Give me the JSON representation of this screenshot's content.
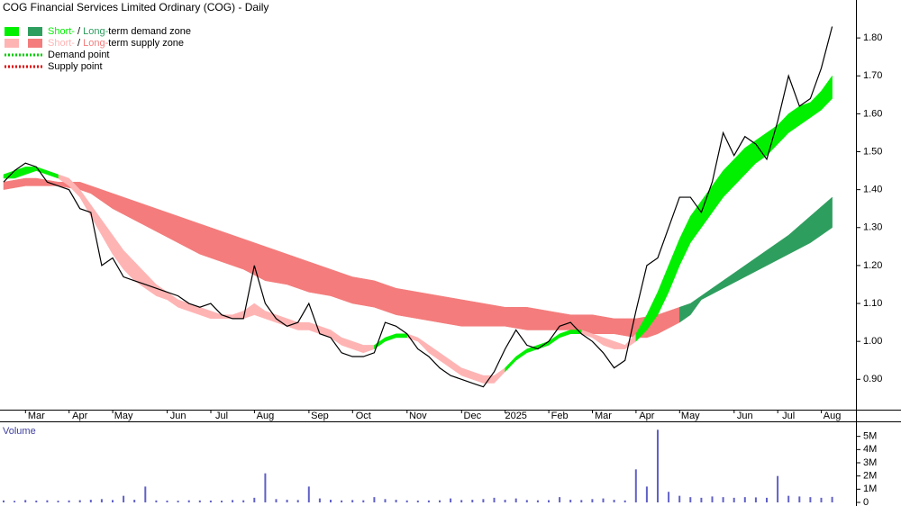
{
  "chart_data": [
    {
      "type": "line",
      "title": "COG Financial Services Limited Ordinary (COG) - Daily",
      "categories": [
        null,
        null,
        null,
        "Mar",
        null,
        null,
        null,
        "Apr",
        null,
        null,
        null,
        "May",
        null,
        null,
        null,
        null,
        "Jun",
        null,
        null,
        null,
        "Jul",
        null,
        null,
        null,
        "Aug",
        null,
        null,
        null,
        null,
        "Sep",
        null,
        null,
        null,
        "Oct",
        null,
        null,
        null,
        null,
        "Nov",
        null,
        null,
        null,
        null,
        "Dec",
        null,
        null,
        null,
        "2025",
        null,
        null,
        null,
        "Feb",
        null,
        null,
        null,
        "Mar",
        null,
        null,
        null,
        "Apr",
        null,
        null,
        null,
        "May",
        null,
        null,
        null,
        null,
        "Jun",
        null,
        null,
        null,
        "Jul",
        null,
        null,
        null,
        "Aug"
      ],
      "ylim": [
        0.82,
        1.9
      ],
      "yticks": [
        {
          "value": 0.9,
          "label": "0.90"
        },
        {
          "value": 1.0,
          "label": "1.00"
        },
        {
          "value": 1.1,
          "label": "1.10"
        },
        {
          "value": 1.2,
          "label": "1.20"
        },
        {
          "value": 1.3,
          "label": "1.30"
        },
        {
          "value": 1.4,
          "label": "1.40"
        },
        {
          "value": 1.5,
          "label": "1.50"
        },
        {
          "value": 1.6,
          "label": "1.60"
        },
        {
          "value": 1.7,
          "label": "1.70"
        },
        {
          "value": 1.8,
          "label": "1.80"
        }
      ],
      "legend": [
        {
          "parts": [
            "Short-",
            " / ",
            "Long-",
            "term demand zone"
          ],
          "swatch_colors": [
            "#00f000",
            "#2e9e5e"
          ]
        },
        {
          "parts": [
            "Short-",
            " / ",
            "Long-",
            "term supply zone"
          ],
          "swatch_colors": [
            "#ffb4b4",
            "#f47c7c"
          ]
        },
        {
          "label": "Demand point",
          "color": "#00cc00"
        },
        {
          "label": "Supply point",
          "color": "#dd0000"
        }
      ],
      "series": [
        {
          "color": "#f47c7c",
          "upper": [
            1.42,
            1.425,
            1.43,
            1.43,
            1.425,
            1.42,
            1.42,
            1.42,
            1.41,
            1.4,
            1.39,
            1.38,
            1.37,
            1.36,
            1.35,
            1.34,
            1.33,
            1.32,
            1.31,
            1.3,
            1.29,
            1.28,
            1.27,
            1.26,
            1.25,
            1.24,
            1.23,
            1.22,
            1.21,
            1.2,
            1.19,
            1.18,
            1.17,
            1.165,
            1.16,
            1.15,
            1.14,
            1.135,
            1.13,
            1.125,
            1.12,
            1.115,
            1.11,
            1.105,
            1.1,
            1.095,
            1.09,
            1.09,
            1.09,
            1.085,
            1.08,
            1.075,
            1.07,
            1.07,
            1.07,
            1.065,
            1.06,
            1.06,
            1.06,
            1.065,
            1.07,
            1.08,
            1.09,
            null,
            null,
            null,
            null,
            null,
            null,
            null,
            null,
            null,
            null,
            null,
            null,
            null,
            null
          ],
          "lower": [
            1.4,
            1.405,
            1.41,
            1.41,
            1.41,
            1.41,
            1.405,
            1.4,
            1.39,
            1.37,
            1.35,
            1.335,
            1.32,
            1.305,
            1.29,
            1.275,
            1.26,
            1.245,
            1.23,
            1.22,
            1.21,
            1.2,
            1.19,
            1.175,
            1.16,
            1.155,
            1.15,
            1.14,
            1.13,
            1.125,
            1.12,
            1.11,
            1.1,
            1.095,
            1.09,
            1.08,
            1.07,
            1.065,
            1.06,
            1.055,
            1.05,
            1.045,
            1.04,
            1.04,
            1.04,
            1.04,
            1.04,
            1.035,
            1.03,
            1.03,
            1.03,
            1.03,
            1.03,
            1.025,
            1.02,
            1.02,
            1.02,
            1.015,
            1.01,
            1.01,
            1.02,
            1.035,
            1.05,
            null,
            null,
            null,
            null,
            null,
            null,
            null,
            null,
            null,
            null,
            null,
            null,
            null,
            null
          ]
        },
        {
          "color": "#2e9e5e",
          "upper": [
            null,
            null,
            null,
            null,
            null,
            null,
            null,
            null,
            null,
            null,
            null,
            null,
            null,
            null,
            null,
            null,
            null,
            null,
            null,
            null,
            null,
            null,
            null,
            null,
            null,
            null,
            null,
            null,
            null,
            null,
            null,
            null,
            null,
            null,
            null,
            null,
            null,
            null,
            null,
            null,
            null,
            null,
            null,
            null,
            null,
            null,
            null,
            null,
            null,
            null,
            null,
            null,
            null,
            null,
            null,
            null,
            null,
            null,
            null,
            null,
            null,
            null,
            1.09,
            1.1,
            1.12,
            1.14,
            1.16,
            1.18,
            1.2,
            1.22,
            1.24,
            1.26,
            1.28,
            1.305,
            1.33,
            1.355,
            1.38
          ],
          "lower": [
            null,
            null,
            null,
            null,
            null,
            null,
            null,
            null,
            null,
            null,
            null,
            null,
            null,
            null,
            null,
            null,
            null,
            null,
            null,
            null,
            null,
            null,
            null,
            null,
            null,
            null,
            null,
            null,
            null,
            null,
            null,
            null,
            null,
            null,
            null,
            null,
            null,
            null,
            null,
            null,
            null,
            null,
            null,
            null,
            null,
            null,
            null,
            null,
            null,
            null,
            null,
            null,
            null,
            null,
            null,
            null,
            null,
            null,
            null,
            null,
            null,
            null,
            1.05,
            1.07,
            1.11,
            1.125,
            1.14,
            1.155,
            1.17,
            1.185,
            1.2,
            1.215,
            1.23,
            1.245,
            1.26,
            1.28,
            1.3
          ]
        },
        {
          "color": "#ffb4b4",
          "upper": [
            null,
            null,
            null,
            null,
            null,
            1.44,
            1.43,
            1.4,
            1.36,
            1.32,
            1.28,
            1.24,
            1.21,
            1.18,
            1.15,
            1.13,
            1.11,
            1.1,
            1.09,
            1.08,
            1.07,
            1.07,
            1.08,
            1.1,
            1.08,
            1.07,
            1.06,
            1.05,
            1.05,
            1.04,
            1.03,
            1.01,
            1.0,
            0.99,
            0.99,
            null,
            null,
            1.02,
            1.01,
            0.99,
            0.97,
            0.95,
            0.93,
            0.92,
            0.91,
            0.91,
            0.93,
            null,
            null,
            null,
            null,
            null,
            null,
            1.03,
            1.02,
            1.01,
            1.0,
            0.99,
            1.02,
            null,
            null,
            null,
            null,
            null,
            null,
            null,
            null,
            null,
            null,
            null,
            null,
            null,
            null,
            null,
            null,
            null,
            null
          ],
          "lower": [
            null,
            null,
            null,
            null,
            null,
            1.43,
            1.41,
            1.38,
            1.33,
            1.28,
            1.23,
            1.19,
            1.16,
            1.14,
            1.12,
            1.11,
            1.09,
            1.08,
            1.07,
            1.06,
            1.06,
            1.06,
            1.06,
            1.07,
            1.06,
            1.05,
            1.04,
            1.03,
            1.03,
            1.02,
            1.01,
            0.99,
            0.98,
            0.97,
            0.98,
            null,
            null,
            1.01,
            1.0,
            0.97,
            0.95,
            0.93,
            0.91,
            0.9,
            0.89,
            0.89,
            0.92,
            null,
            null,
            null,
            null,
            null,
            null,
            1.02,
            1.01,
            0.99,
            0.98,
            0.98,
            1.0,
            null,
            null,
            null,
            null,
            null,
            null,
            null,
            null,
            null,
            null,
            null,
            null,
            null,
            null,
            null,
            null,
            null,
            null
          ]
        },
        {
          "color": "#00f000",
          "upper": [
            1.44,
            1.45,
            1.46,
            1.46,
            1.45,
            1.44,
            null,
            null,
            null,
            null,
            null,
            null,
            null,
            null,
            null,
            null,
            null,
            null,
            null,
            null,
            null,
            null,
            null,
            null,
            null,
            null,
            null,
            null,
            null,
            null,
            null,
            null,
            null,
            null,
            0.99,
            1.01,
            1.02,
            1.02,
            null,
            null,
            null,
            null,
            null,
            null,
            null,
            null,
            0.93,
            0.96,
            0.98,
            0.99,
            1.0,
            1.02,
            1.03,
            1.03,
            null,
            null,
            null,
            null,
            1.02,
            1.07,
            1.13,
            1.2,
            1.27,
            1.33,
            1.37,
            1.41,
            1.45,
            1.48,
            1.51,
            1.53,
            1.55,
            1.57,
            1.6,
            1.62,
            1.63,
            1.66,
            1.7
          ],
          "lower": [
            1.43,
            1.43,
            1.44,
            1.45,
            1.44,
            1.43,
            null,
            null,
            null,
            null,
            null,
            null,
            null,
            null,
            null,
            null,
            null,
            null,
            null,
            null,
            null,
            null,
            null,
            null,
            null,
            null,
            null,
            null,
            null,
            null,
            null,
            null,
            null,
            null,
            0.98,
            1.0,
            1.01,
            1.01,
            null,
            null,
            null,
            null,
            null,
            null,
            null,
            null,
            0.92,
            0.95,
            0.97,
            0.98,
            0.99,
            1.01,
            1.02,
            1.02,
            null,
            null,
            null,
            null,
            1.0,
            1.03,
            1.07,
            1.13,
            1.2,
            1.26,
            1.3,
            1.34,
            1.38,
            1.41,
            1.44,
            1.47,
            1.49,
            1.52,
            1.55,
            1.57,
            1.59,
            1.61,
            1.64
          ]
        },
        {
          "color": "#000000",
          "values": [
            1.42,
            1.45,
            1.47,
            1.46,
            1.42,
            1.41,
            1.4,
            1.35,
            1.34,
            1.2,
            1.22,
            1.17,
            1.16,
            1.15,
            1.14,
            1.13,
            1.12,
            1.1,
            1.09,
            1.1,
            1.07,
            1.06,
            1.06,
            1.2,
            1.1,
            1.06,
            1.04,
            1.05,
            1.1,
            1.02,
            1.01,
            0.97,
            0.96,
            0.96,
            0.97,
            1.05,
            1.04,
            1.02,
            0.98,
            0.96,
            0.93,
            0.91,
            0.9,
            0.89,
            0.88,
            0.92,
            0.98,
            1.03,
            0.99,
            0.98,
            1.0,
            1.04,
            1.05,
            1.02,
            1.0,
            0.97,
            0.93,
            0.95,
            1.08,
            1.2,
            1.22,
            1.3,
            1.38,
            1.38,
            1.34,
            1.42,
            1.55,
            1.49,
            1.54,
            1.52,
            1.48,
            1.58,
            1.7,
            1.62,
            1.64,
            1.72,
            1.83
          ]
        }
      ]
    },
    {
      "type": "bar",
      "title": "Volume",
      "color": "#6060c8",
      "ylim": [
        0,
        6000000
      ],
      "yticks": [
        0,
        {
          "value": 1000000,
          "label": "1M"
        },
        {
          "value": 2000000,
          "label": "2M"
        },
        {
          "value": 3000000,
          "label": "3M"
        },
        {
          "value": 4000000,
          "label": "4M"
        },
        {
          "value": 5000000,
          "label": "5M"
        }
      ],
      "values": [
        150000,
        120000,
        180000,
        140000,
        160000,
        130000,
        150000,
        170000,
        200000,
        250000,
        180000,
        500000,
        200000,
        1200000,
        150000,
        140000,
        130000,
        160000,
        150000,
        140000,
        130000,
        180000,
        160000,
        350000,
        2200000,
        250000,
        200000,
        180000,
        1200000,
        300000,
        200000,
        150000,
        180000,
        160000,
        400000,
        250000,
        200000,
        150000,
        140000,
        150000,
        160000,
        300000,
        180000,
        200000,
        250000,
        350000,
        200000,
        300000,
        180000,
        160000,
        170000,
        400000,
        200000,
        180000,
        250000,
        300000,
        200000,
        150000,
        2500000,
        1200000,
        5500000,
        800000,
        500000,
        400000,
        350000,
        450000,
        400000,
        350000,
        400000,
        380000,
        350000,
        2000000,
        500000,
        450000,
        400000,
        350000,
        420000
      ]
    }
  ]
}
